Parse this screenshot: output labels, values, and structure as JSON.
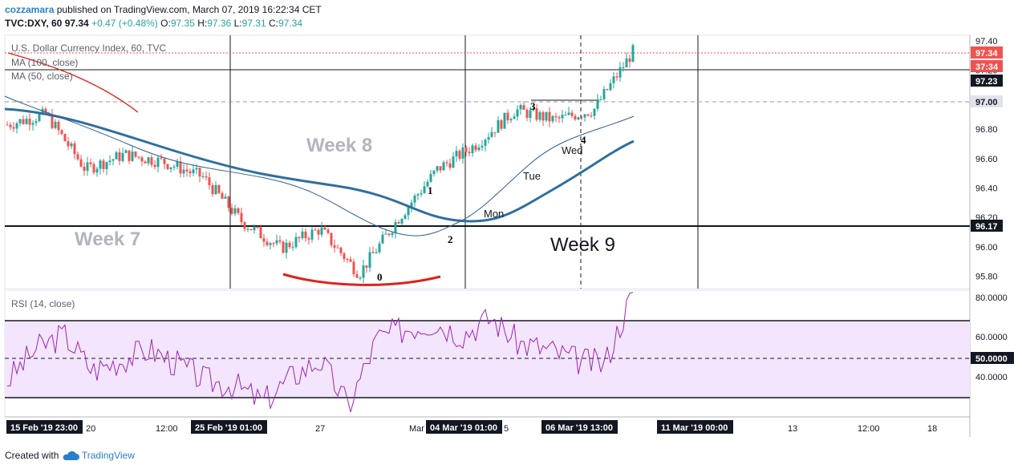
{
  "header": {
    "author": "cozzamara",
    "published_text": "published on TradingView.com, March 07, 2019 16:22:34 CET",
    "symbol": "TVC:DXY, 60",
    "last": "97.34",
    "change": "+0.47 (+0.48%)",
    "o_label": "O:",
    "o": "97.35",
    "h_label": "H:",
    "h": "97.36",
    "l_label": "L:",
    "l": "97.31",
    "c_label": "C:",
    "c": "97.34"
  },
  "panes": {
    "main_label": "U.S. Dollar Currency Index, 60, TVC",
    "ma100_label": "MA (100, close)",
    "ma50_label": "MA (50, close)",
    "rsi_label": "RSI (14, close)"
  },
  "price_axis": [
    "97.40",
    "97.20",
    "97.00",
    "96.80",
    "96.60",
    "96.40",
    "96.20",
    "96.00",
    "95.80"
  ],
  "rsi_axis": [
    "80.0000",
    "60.0000",
    "40.0000"
  ],
  "price_badges": {
    "last": "97.34",
    "countdown": "37:34",
    "ma": "97.23",
    "level1": "97.00",
    "level2": "96.17",
    "rsi_mid": "50.0000"
  },
  "time_axis": {
    "ticks": [
      "20",
      "12:00",
      "27",
      "Mar",
      "5",
      "13",
      "12:00",
      "18"
    ],
    "badges": [
      "15 Feb '19  23:00",
      "25 Feb '19  01:00",
      "04 Mar '19  01:00",
      "06 Mar '19  13:00",
      "11 Mar '19  00:00"
    ]
  },
  "annotations": {
    "week7": "Week 7",
    "week8": "Week 8",
    "week9": "Week 9",
    "p0": "0",
    "p1": "1",
    "p2": "2",
    "p3": "3",
    "p4": "4",
    "mon": "Mon",
    "tue": "Tue",
    "wed": "Wed"
  },
  "footer": {
    "created_with": "Created with",
    "brand": "TradingView"
  },
  "colors": {
    "up": "#26a69a",
    "down": "#ef5350",
    "ma100": "#2f6f9f",
    "ma50": "#2f5f8f",
    "rsi": "#9c27b0",
    "rsi_band": "#f3e5fd",
    "arc": "#e0201b"
  },
  "chart_data": [
    {
      "type": "candlestick",
      "title": "U.S. Dollar Currency Index, 60, TVC",
      "ylim": [
        95.75,
        97.45
      ],
      "x_range": [
        "15 Feb '19",
        "19 Mar '19"
      ],
      "keypoints": [
        {
          "t": "15 Feb '19",
          "price": 96.85
        },
        {
          "t": "18 Feb '19",
          "price": 96.92
        },
        {
          "t": "19 Feb '19",
          "price": 96.55
        },
        {
          "t": "21 Feb '19",
          "price": 96.65
        },
        {
          "t": "22 Feb '19",
          "price": 96.6
        },
        {
          "t": "25 Feb '19",
          "price": 96.5
        },
        {
          "t": "26 Feb '19",
          "price": 96.2
        },
        {
          "t": "27 Feb '19",
          "price": 96.02
        },
        {
          "t": "28 Feb '19",
          "price": 96.15
        },
        {
          "t": "01 Mar '19",
          "price": 95.85
        },
        {
          "t": "04 Mar '19",
          "price": 96.22
        },
        {
          "t": "04 Mar '19 20:00",
          "price": 96.55
        },
        {
          "t": "05 Mar '19",
          "price": 96.72
        },
        {
          "t": "06 Mar '19",
          "price": 96.95
        },
        {
          "t": "06 Mar '19 13:00",
          "price": 96.88
        },
        {
          "t": "07 Mar '19 14:00",
          "price": 96.95
        },
        {
          "t": "07 Mar '19 16:00",
          "price": 97.34
        }
      ],
      "series": [
        {
          "name": "MA (100, close)",
          "values": [
            97.0,
            96.9,
            96.75,
            96.6,
            96.45,
            96.3,
            96.25,
            96.35,
            96.55,
            96.72
          ]
        },
        {
          "name": "MA (50, close)",
          "values": [
            96.95,
            96.72,
            96.6,
            96.45,
            96.3,
            96.1,
            96.2,
            96.5,
            96.75,
            96.88
          ]
        }
      ],
      "horizontal_levels": [
        97.0,
        96.17
      ],
      "last_price": 97.34
    },
    {
      "type": "line",
      "title": "RSI (14, close)",
      "ylim": [
        23,
        83
      ],
      "bands": [
        30,
        70
      ],
      "midline": 50,
      "series": [
        {
          "name": "RSI (14, close)",
          "values": [
            40,
            55,
            62,
            45,
            50,
            55,
            48,
            40,
            38,
            30,
            42,
            50,
            28,
            60,
            65,
            68,
            62,
            70,
            58,
            55,
            50,
            48,
            82
          ]
        }
      ]
    }
  ]
}
